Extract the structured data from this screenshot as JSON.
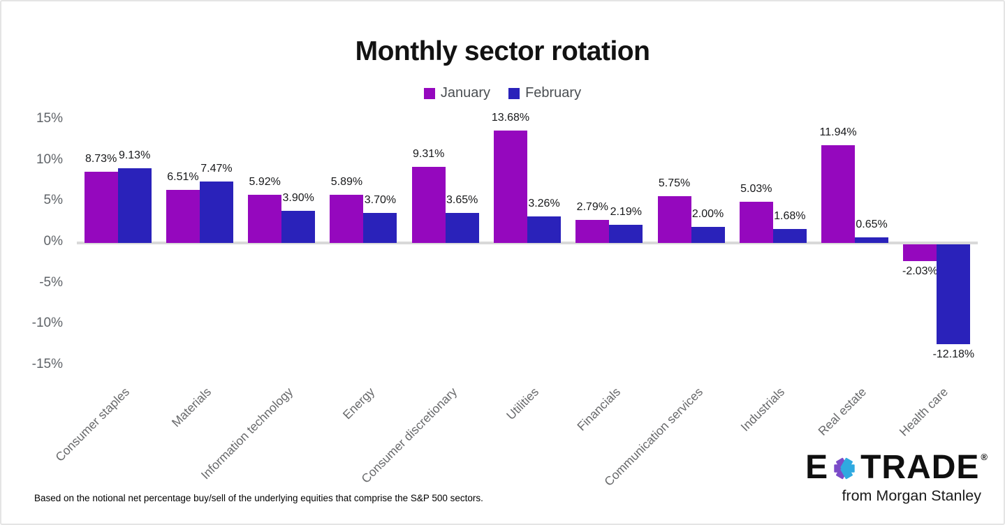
{
  "chart_data": {
    "type": "bar",
    "title": "Monthly sector rotation",
    "categories": [
      "Consumer staples",
      "Materials",
      "Information technology",
      "Energy",
      "Consumer discretionary",
      "Utilities",
      "Financials",
      "Communication services",
      "Industrials",
      "Real estate",
      "Health care"
    ],
    "series": [
      {
        "name": "January",
        "color": "#9508BE",
        "values": [
          8.73,
          6.51,
          5.92,
          5.89,
          9.31,
          13.68,
          2.79,
          5.75,
          5.03,
          11.94,
          -2.03
        ]
      },
      {
        "name": "February",
        "color": "#2A22BA",
        "values": [
          9.13,
          7.47,
          3.9,
          3.7,
          3.65,
          3.26,
          2.19,
          2.0,
          1.68,
          0.65,
          -12.18
        ]
      }
    ],
    "value_label_format": "two-decimals-percent",
    "ytick_values": [
      15,
      10,
      5,
      0,
      -5,
      -10,
      -15
    ],
    "ytick_labels": [
      "15%",
      "10%",
      "5%",
      "0%",
      "-5%",
      "-10%",
      "-15%"
    ],
    "ylim": [
      -15,
      15
    ],
    "grid": false,
    "legend_position": "top"
  },
  "footnote": "Based on the notional net percentage buy/sell of the underlying equities that comprise the S&P 500 sectors.",
  "logo": {
    "e": "E",
    "trade": "TRADE",
    "registered": "®",
    "tagline": "from Morgan Stanley",
    "star_purple": "#7B4BC8",
    "star_cyan": "#2FA9E0"
  }
}
